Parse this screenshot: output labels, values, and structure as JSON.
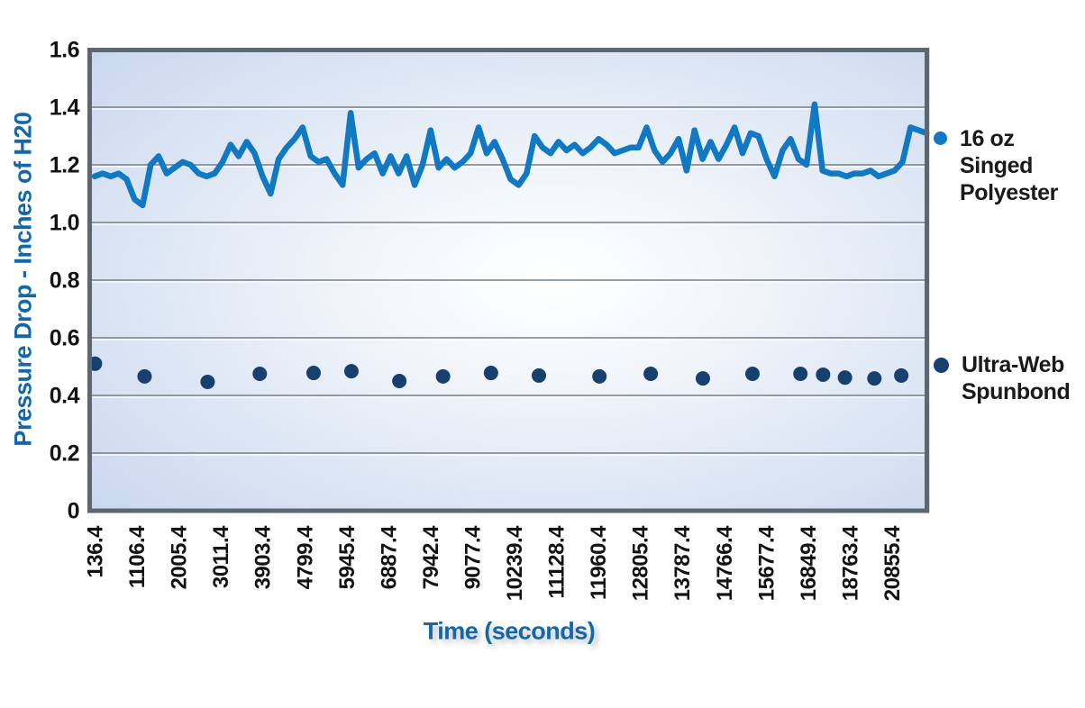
{
  "axes": {
    "x_title": "Time (seconds)",
    "y_title": "Pressure Drop - Inches of H20"
  },
  "legend": {
    "entries": [
      {
        "label": "16 oz\nSinged\nPolyester",
        "color": "#1179c4",
        "marker": "dot-icon"
      },
      {
        "label": "Ultra-Web\nSpunbond",
        "color": "#17406f",
        "marker": "dot-icon"
      }
    ]
  },
  "colors": {
    "axis_title": "#1467a8",
    "tick_text": "#131313",
    "plot_border": "#5b6772",
    "gridline": "#74808c",
    "gridline_highlight": "rgba(255,255,255,0.8)",
    "plot_bg_edge": "#c6d5ed",
    "plot_bg_mid": "#dde6f4",
    "plot_bg_center": "#ffffff",
    "page_bg": "#ffffff"
  },
  "chart_data": {
    "type": "line",
    "title": "",
    "xlabel": "Time (seconds)",
    "ylabel": "Pressure Drop - Inches of H20",
    "ylim": [
      0,
      1.6
    ],
    "grid": "horizontal",
    "legend_position": "right",
    "yticks": [
      "1.6",
      "1.4",
      "1.2",
      "1.0",
      "0.8",
      "0.6",
      "0.4",
      "0.2",
      "0"
    ],
    "ytick_values": [
      1.6,
      1.4,
      1.2,
      1.0,
      0.8,
      0.6,
      0.4,
      0.2,
      0
    ],
    "xticks": [
      "136.4",
      "1106.4",
      "2005.4",
      "3011.4",
      "3903.4",
      "4799.4",
      "5945.4",
      "6887.4",
      "7942.4",
      "9077.4",
      "10239.4",
      "11128.4",
      "11960.4",
      "12805.4",
      "13787.4",
      "14766.4",
      "15677.4",
      "16849.4",
      "18763.4",
      "20855.4"
    ],
    "series": [
      {
        "name": "16 oz Singed Polyester",
        "type": "line",
        "color": "#1179c4",
        "stroke_width": 6.5,
        "x_start_frac": 0.0086,
        "x_end_frac": 0.998,
        "values": [
          1.16,
          1.17,
          1.16,
          1.17,
          1.15,
          1.08,
          1.06,
          1.2,
          1.23,
          1.17,
          1.19,
          1.21,
          1.2,
          1.17,
          1.16,
          1.17,
          1.21,
          1.27,
          1.23,
          1.28,
          1.24,
          1.16,
          1.1,
          1.22,
          1.26,
          1.29,
          1.33,
          1.23,
          1.21,
          1.22,
          1.17,
          1.13,
          1.38,
          1.19,
          1.22,
          1.24,
          1.17,
          1.23,
          1.17,
          1.23,
          1.13,
          1.2,
          1.32,
          1.19,
          1.22,
          1.19,
          1.21,
          1.24,
          1.33,
          1.24,
          1.28,
          1.22,
          1.15,
          1.13,
          1.17,
          1.3,
          1.26,
          1.24,
          1.28,
          1.25,
          1.27,
          1.24,
          1.26,
          1.29,
          1.27,
          1.24,
          1.25,
          1.26,
          1.26,
          1.33,
          1.25,
          1.21,
          1.24,
          1.29,
          1.18,
          1.32,
          1.22,
          1.28,
          1.22,
          1.27,
          1.33,
          1.24,
          1.31,
          1.3,
          1.22,
          1.16,
          1.25,
          1.29,
          1.22,
          1.2,
          1.41,
          1.18,
          1.17,
          1.17,
          1.16,
          1.17,
          1.17,
          1.18,
          1.16,
          1.17,
          1.18,
          1.21,
          1.33,
          1.32,
          1.31
        ]
      },
      {
        "name": "Ultra-Web Spunbond",
        "type": "scatter",
        "color": "#17406f",
        "marker_radius": 8,
        "points": [
          [
            0.009,
            0.51
          ],
          [
            0.068,
            0.466
          ],
          [
            0.143,
            0.447
          ],
          [
            0.205,
            0.475
          ],
          [
            0.269,
            0.478
          ],
          [
            0.314,
            0.484
          ],
          [
            0.371,
            0.45
          ],
          [
            0.423,
            0.466
          ],
          [
            0.48,
            0.478
          ],
          [
            0.537,
            0.469
          ],
          [
            0.609,
            0.466
          ],
          [
            0.67,
            0.475
          ],
          [
            0.732,
            0.459
          ],
          [
            0.791,
            0.475
          ],
          [
            0.848,
            0.475
          ],
          [
            0.875,
            0.472
          ],
          [
            0.901,
            0.462
          ],
          [
            0.936,
            0.459
          ],
          [
            0.968,
            0.469
          ]
        ]
      }
    ]
  }
}
